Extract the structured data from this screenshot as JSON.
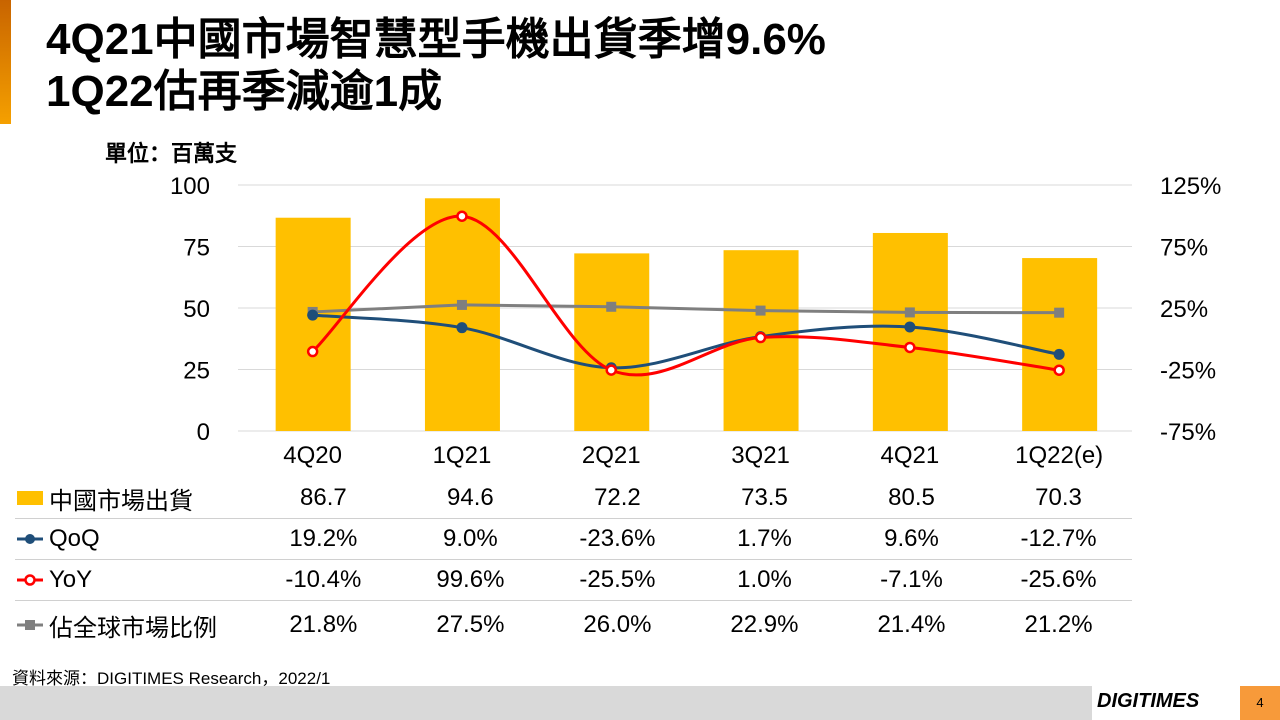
{
  "title_line1": "4Q21中國市場智慧型手機出貨季增9.6%",
  "title_line2": "1Q22估再季減逾1成",
  "unit": "單位：百萬支",
  "chart_data": {
    "type": "bar+line",
    "categories": [
      "4Q20",
      "1Q21",
      "2Q21",
      "3Q21",
      "4Q21",
      "1Q22(e)"
    ],
    "left_axis": {
      "ylim": [
        0,
        100
      ],
      "ticks": [
        "0",
        "25",
        "50",
        "75",
        "100"
      ]
    },
    "right_axis": {
      "ylim": [
        -75,
        125
      ],
      "ticks": [
        "-75%",
        "-25%",
        "25%",
        "75%",
        "125%"
      ]
    },
    "series": [
      {
        "name": "中國市場出貨",
        "type": "bar",
        "axis": "left",
        "color": "#ffc000",
        "values": [
          86.7,
          94.6,
          72.2,
          73.5,
          80.5,
          70.3
        ],
        "labels": [
          "86.7",
          "94.6",
          "72.2",
          "73.5",
          "80.5",
          "70.3"
        ]
      },
      {
        "name": "QoQ",
        "type": "line",
        "axis": "right",
        "color": "#1f4e79",
        "values": [
          19.2,
          9.0,
          -23.6,
          1.7,
          9.6,
          -12.7
        ],
        "labels": [
          "19.2%",
          "9.0%",
          "-23.6%",
          "1.7%",
          "9.6%",
          "-12.7%"
        ]
      },
      {
        "name": "YoY",
        "type": "line",
        "axis": "right",
        "color": "#ff0000",
        "values": [
          -10.4,
          99.6,
          -25.5,
          1.0,
          -7.1,
          -25.6
        ],
        "labels": [
          "-10.4%",
          "99.6%",
          "-25.5%",
          "1.0%",
          "-7.1%",
          "-25.6%"
        ]
      },
      {
        "name": "佔全球市場比例",
        "type": "line",
        "axis": "right",
        "color": "#7f7f7f",
        "values": [
          21.8,
          27.5,
          26.0,
          22.9,
          21.4,
          21.2
        ],
        "labels": [
          "21.8%",
          "27.5%",
          "26.0%",
          "22.9%",
          "21.4%",
          "21.2%"
        ]
      }
    ],
    "grid": true
  },
  "source": "資料來源：DIGITIMES Research，2022/1",
  "logo": "DIGITIMES",
  "page_number": "4"
}
